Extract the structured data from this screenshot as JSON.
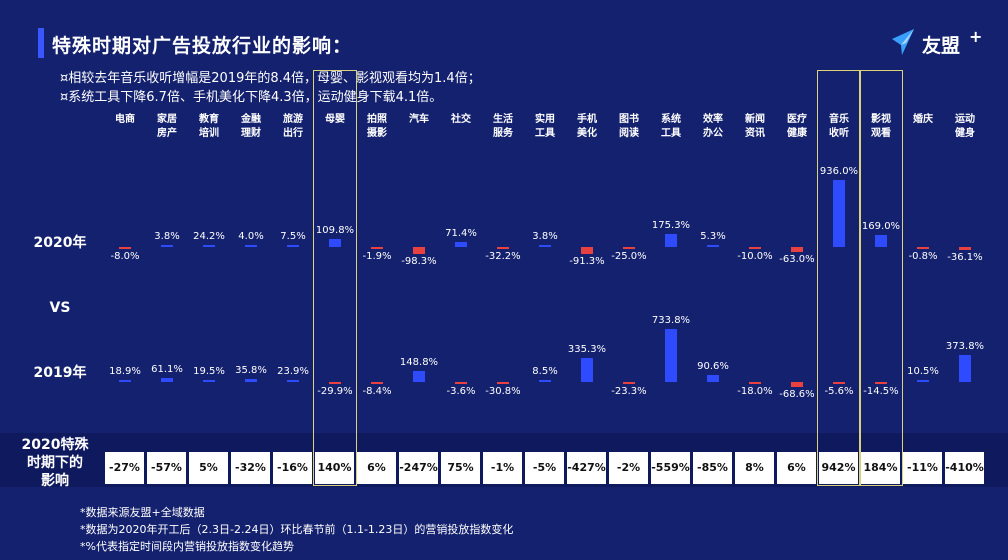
{
  "header": {
    "title": "特殊时期对广告投放行业的影响：",
    "logo_text": "友盟",
    "logo_plus": "+"
  },
  "notes": [
    "¤相较去年音乐收听增幅是2019年的8.4倍，母婴、影视观看均为1.4倍；",
    "¤系统工具下降6.7倍、手机美化下降4.3倍，运动健身下载4.1倍。"
  ],
  "row_labels": {
    "r2020": "2020年",
    "vs": "VS",
    "r2019": "2019年",
    "impact": [
      "2020特殊",
      "时期下的",
      "影响"
    ]
  },
  "colors": {
    "background": "#14216e",
    "positive": "#2f4bff",
    "negative": "#e8413f",
    "highlight": "#d9d27a",
    "box_bg": "#ffffff"
  },
  "chart_data": {
    "type": "bar",
    "title": "特殊时期对广告投放行业的影响：",
    "categories": [
      [
        "电商"
      ],
      [
        "家居",
        "房产"
      ],
      [
        "教育",
        "培训"
      ],
      [
        "金融",
        "理财"
      ],
      [
        "旅游",
        "出行"
      ],
      [
        "母婴"
      ],
      [
        "拍照",
        "摄影"
      ],
      [
        "汽车"
      ],
      [
        "社交"
      ],
      [
        "生活",
        "服务"
      ],
      [
        "实用",
        "工具"
      ],
      [
        "手机",
        "美化"
      ],
      [
        "图书",
        "阅读"
      ],
      [
        "系统",
        "工具"
      ],
      [
        "效率",
        "办公"
      ],
      [
        "新闻",
        "资讯"
      ],
      [
        "医疗",
        "健康"
      ],
      [
        "音乐",
        "收听"
      ],
      [
        "影视",
        "观看"
      ],
      [
        "婚庆"
      ],
      [
        "运动",
        "健身"
      ]
    ],
    "highlighted_categories": [
      5,
      17,
      18
    ],
    "series": [
      {
        "name": "2020年",
        "values": [
          -8.0,
          3.8,
          24.2,
          4.0,
          7.5,
          109.8,
          -1.9,
          -98.3,
          71.4,
          -32.2,
          3.8,
          -91.3,
          -25.0,
          175.3,
          5.3,
          -10.0,
          -63.0,
          936.0,
          169.0,
          -0.8,
          -36.1
        ],
        "labels": [
          "-8.0%",
          "3.8%",
          "24.2%",
          "4.0%",
          "7.5%",
          "109.8%",
          "-1.9%",
          "-98.3%",
          "71.4%",
          "-32.2%",
          "3.8%",
          "-91.3%",
          "-25.0%",
          "175.3%",
          "5.3%",
          "-10.0%",
          "-63.0%",
          "936.0%",
          "169.0%",
          "-0.8%",
          "-36.1%"
        ]
      },
      {
        "name": "2019年",
        "values": [
          18.9,
          61.1,
          19.5,
          35.8,
          23.9,
          -29.9,
          -8.4,
          148.8,
          -3.6,
          -30.8,
          8.5,
          335.3,
          -23.3,
          733.8,
          90.6,
          -18.0,
          -68.6,
          -5.6,
          -14.5,
          10.5,
          373.8
        ],
        "labels": [
          "18.9%",
          "61.1%",
          "19.5%",
          "35.8%",
          "23.9%",
          "-29.9%",
          "-8.4%",
          "148.8%",
          "-3.6%",
          "-30.8%",
          "8.5%",
          "335.3%",
          "-23.3%",
          "733.8%",
          "90.6%",
          "-18.0%",
          "-68.6%",
          "-5.6%",
          "-14.5%",
          "10.5%",
          "373.8%"
        ]
      }
    ],
    "impact": [
      "-27%",
      "-57%",
      "5%",
      "-32%",
      "-16%",
      "140%",
      "6%",
      "-247%",
      "75%",
      "-1%",
      "-5%",
      "-427%",
      "-2%",
      "-559%",
      "-85%",
      "8%",
      "6%",
      "942%",
      "184%",
      "-11%",
      "-410%"
    ]
  },
  "footnotes": [
    "*数据来源友盟+全域数据",
    "*数据为2020年开工后（2.3日-2.24日）环比春节前（1.1-1.23日）的营销投放指数变化",
    "*%代表指定时间段内营销投放指数变化趋势"
  ]
}
